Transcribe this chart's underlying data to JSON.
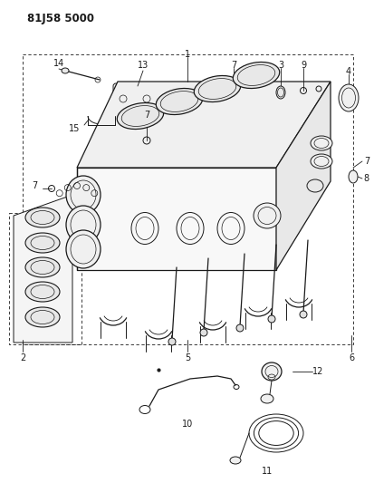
{
  "title": "81J58 5000",
  "bg_color": "#ffffff",
  "fig_width": 4.14,
  "fig_height": 5.33,
  "dpi": 100,
  "line_color": "#1a1a1a",
  "label_fontsize": 7.0,
  "title_fontsize": 8.5
}
